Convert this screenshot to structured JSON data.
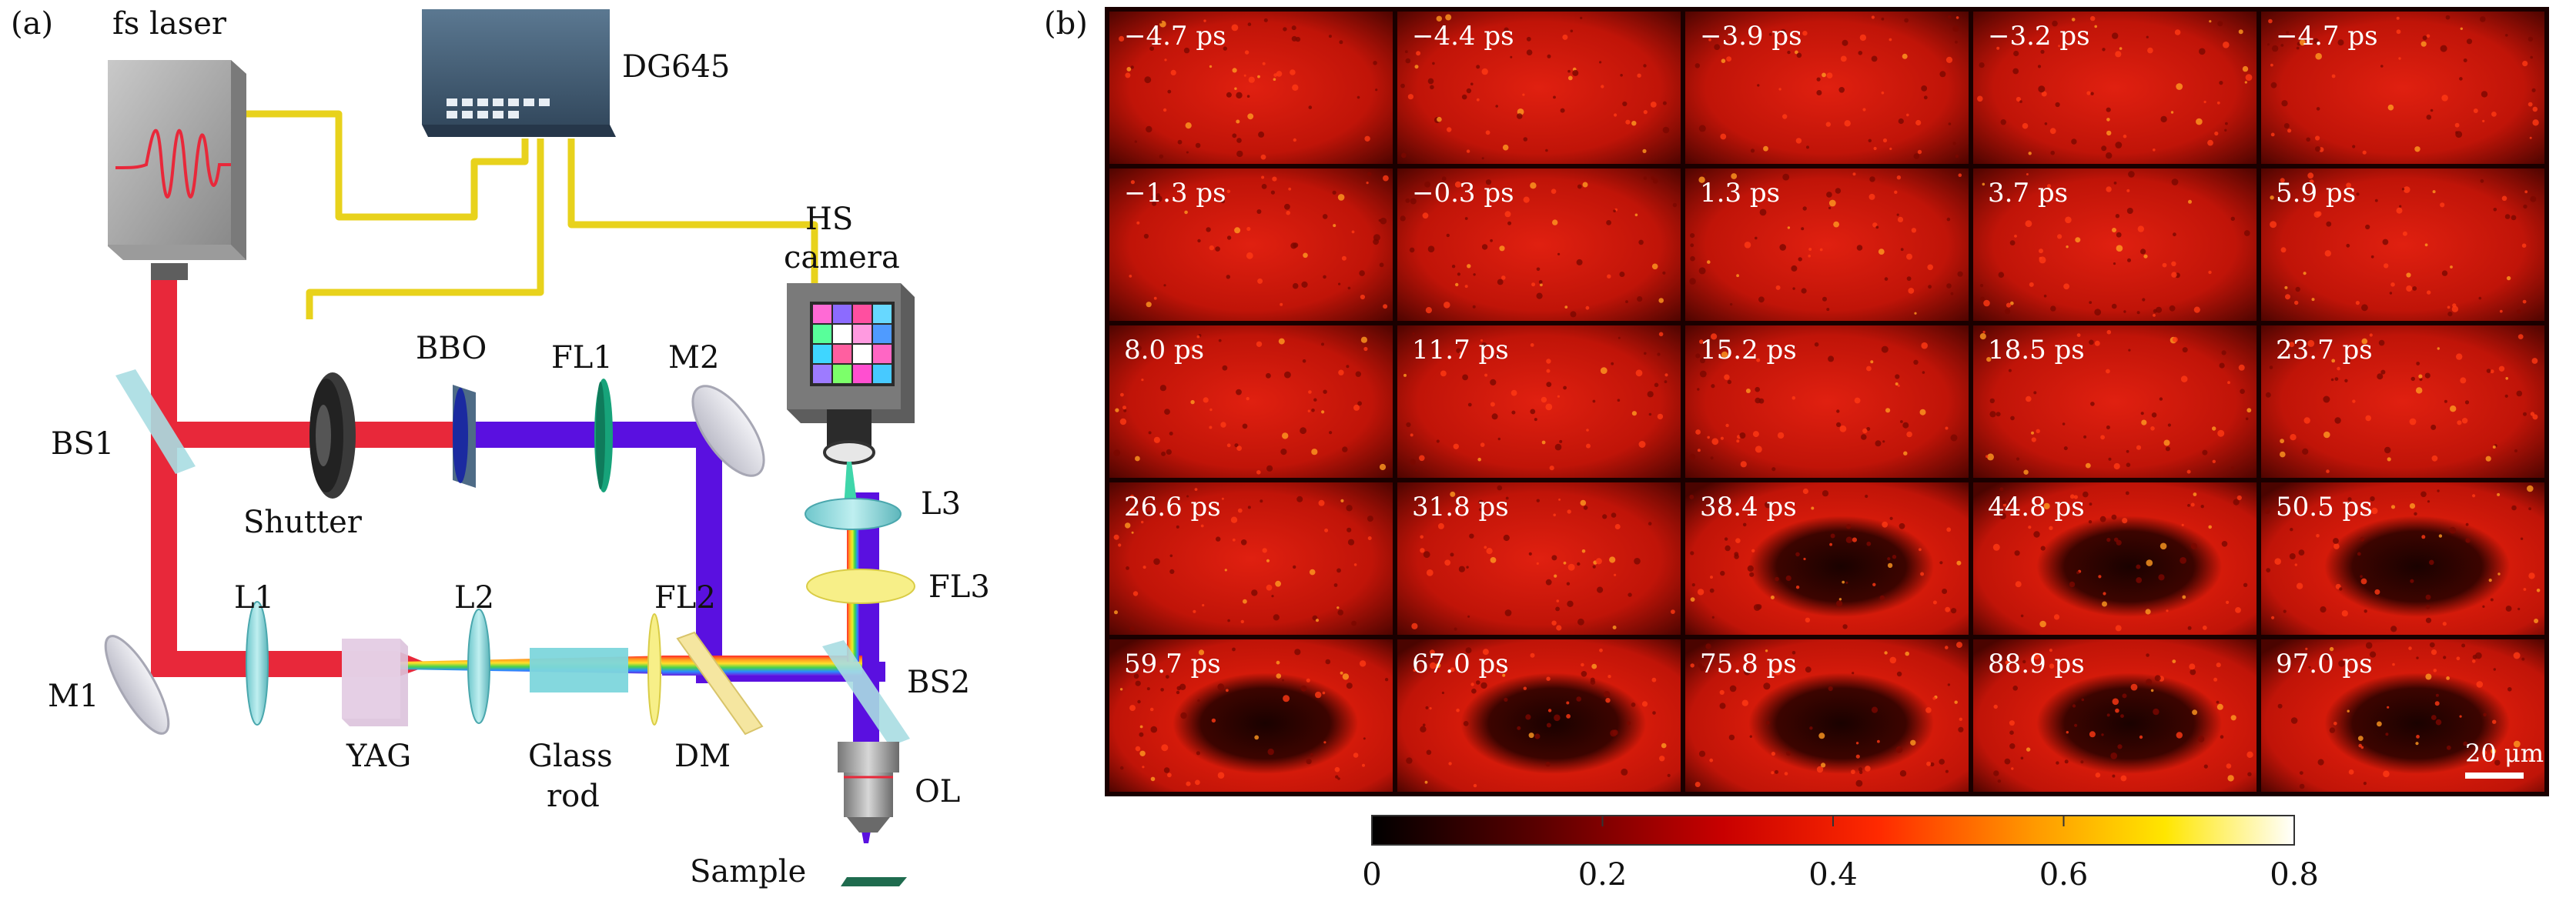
{
  "panel_a": {
    "label": "(a)",
    "components": {
      "fs_laser": "fs laser",
      "dg645": "DG645",
      "hs_camera_line1": "HS",
      "hs_camera_line2": "camera",
      "bbo": "BBO",
      "fl1": "FL1",
      "m2": "M2",
      "bs1": "BS1",
      "shutter": "Shutter",
      "l3": "L3",
      "fl3": "FL3",
      "l1": "L1",
      "l2": "L2",
      "fl2": "FL2",
      "bs2": "BS2",
      "m1": "M1",
      "yag": "YAG",
      "glass_rod_line1": "Glass",
      "glass_rod_line2": "rod",
      "dm": "DM",
      "ol": "OL",
      "sample": "Sample"
    },
    "colors": {
      "red_beam": "#e8283a",
      "blue_beam": "#5a10e0",
      "cable": "#e8d21c"
    }
  },
  "panel_b": {
    "label": "(b)",
    "frames": [
      "−4.7 ps",
      "−4.4 ps",
      "−3.9 ps",
      "−3.2 ps",
      "−4.7 ps",
      "−1.3 ps",
      "−0.3 ps",
      "1.3 ps",
      "3.7 ps",
      "5.9 ps",
      "8.0 ps",
      "11.7 ps",
      "15.2 ps",
      "18.5 ps",
      "23.7 ps",
      "26.6 ps",
      "31.8 ps",
      "38.4 ps",
      "44.8 ps",
      "50.5 ps",
      "59.7 ps",
      "67.0 ps",
      "75.8 ps",
      "88.9 ps",
      "97.0 ps"
    ],
    "scale_bar": "20 μm",
    "colorbar": {
      "ticks": [
        "0",
        "0.2",
        "0.4",
        "0.6",
        "0.8"
      ],
      "min": 0,
      "max": 0.8
    }
  }
}
